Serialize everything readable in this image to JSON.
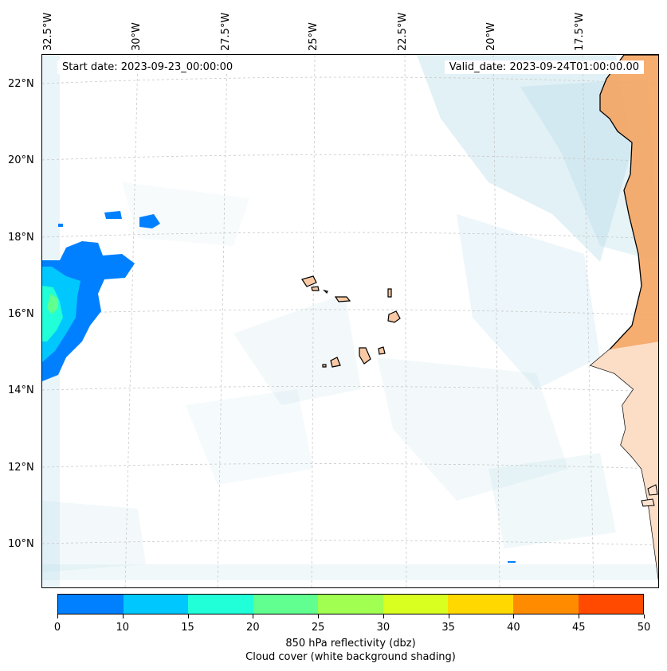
{
  "map": {
    "start_date": "Start date: 2023-09-23_00:00:00",
    "valid_date": "Valid_date: 2023-09-24T01:00:00.00",
    "lat_labels": [
      "22°N",
      "20°N",
      "18°N",
      "16°N",
      "14°N",
      "12°N",
      "10°N"
    ],
    "lon_labels": [
      "32.5°W",
      "30°W",
      "27.5°W",
      "25°W",
      "22.5°W",
      "20°W",
      "17.5°W"
    ],
    "land_color": "#f4a460",
    "coast_color": "#000000"
  },
  "colorbar": {
    "ticks": [
      "0",
      "10",
      "15",
      "20",
      "25",
      "30",
      "35",
      "40",
      "45",
      "50"
    ],
    "colors": [
      "#0080ff",
      "#00c8ff",
      "#20ffd8",
      "#60ff90",
      "#a0ff50",
      "#d8ff20",
      "#ffd800",
      "#ff8c00",
      "#ff4a00"
    ],
    "label_line1": "850 hPa reflectivity (dbz)",
    "label_line2": "Cloud cover (white background shading)"
  }
}
